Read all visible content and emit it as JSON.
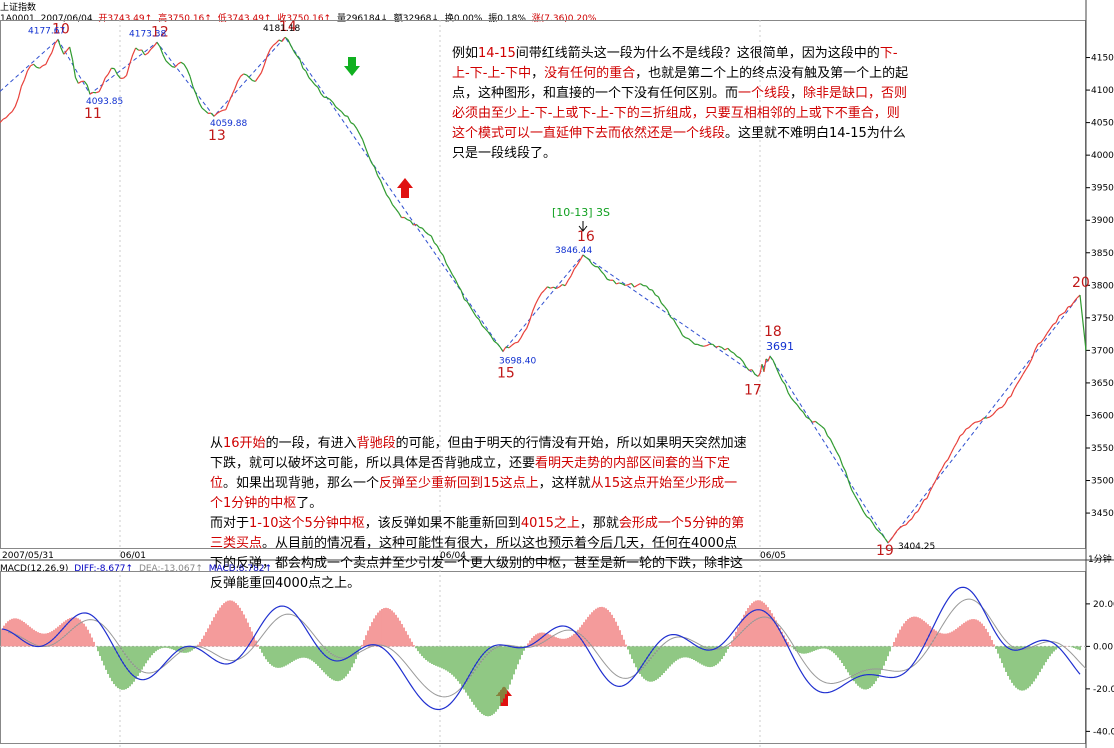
{
  "header": {
    "title": "上证指数",
    "code": "1A0001",
    "date": "2007/06/04",
    "open": "开3743.49↑",
    "high": "高3750.16↑",
    "low": "低3743.49↑",
    "close": "收3750.16↑",
    "volume": "量296184↓",
    "amount": "额32968↓",
    "change_pct": "换0.00%",
    "amplitude": "振0.18%",
    "rise": "涨(7.36)0.20%"
  },
  "macd_header": {
    "name": "MACD(12,26,9)",
    "diff": "DIFF:-8.677↑",
    "dea": "DEA:-13.067↑",
    "macd": "MACD:8.782↑"
  },
  "period_label": "1分钟",
  "colors": {
    "up": "#e8403a",
    "down": "#2e9a2e",
    "pen": "#3050d0",
    "macd_up": "#f07070",
    "macd_down": "#60b050"
  },
  "chart_data": {
    "type": "line",
    "price_axis": {
      "ylim": [
        3404,
        4200
      ],
      "ticks": [
        3450,
        3500,
        3550,
        3600,
        3650,
        3700,
        3750,
        3800,
        3850,
        3900,
        3950,
        4000,
        4050,
        4100,
        4150
      ]
    },
    "macd_axis": {
      "ylim": [
        -45,
        35
      ],
      "ticks": [
        20,
        0,
        -20,
        -40
      ],
      "tick_labels": [
        "20.00",
        "0.00",
        "-20.00",
        "-40.00"
      ]
    },
    "x_labels": [
      "2007/05/31",
      "06/01",
      "06/04",
      "06/05"
    ],
    "pivots": [
      {
        "label": "10",
        "price": 4177.67,
        "price_label": "4177.67"
      },
      {
        "label": "11",
        "price": 4093.85,
        "price_label": "4093.85"
      },
      {
        "label": "12",
        "price": 4173.38,
        "price_label": "4173.38"
      },
      {
        "label": "13",
        "price": 4059.88,
        "price_label": "4059.88"
      },
      {
        "label": "14",
        "price": 4181.18,
        "price_label": "4181.18"
      },
      {
        "label": "15",
        "price": 3698.4,
        "price_label": "3698.40"
      },
      {
        "label": "16",
        "price": 3846.44,
        "price_label": "3846.44"
      },
      {
        "label": "17",
        "price": 3660.0,
        "price_label": ""
      },
      {
        "label": "18",
        "price": 3691.0,
        "price_label": "3691"
      },
      {
        "label": "19",
        "price": 3404.25,
        "price_label": "3404.25"
      },
      {
        "label": "20",
        "price": 3785.0,
        "price_label": ""
      }
    ],
    "annotation_16": "[10-13] 3S"
  },
  "notes": {
    "top": [
      {
        "t": "例如",
        "r": false
      },
      {
        "t": "14-15",
        "r": true
      },
      {
        "t": "间带红线箭头这一段为什么不是线段？这很简单，因为这段中的",
        "r": false
      },
      {
        "t": "下-上-下-上-下中",
        "r": true
      },
      {
        "t": "，",
        "r": false
      },
      {
        "t": "没有任何的重合",
        "r": true
      },
      {
        "t": "，也就是第二个上的终点没有触及第一个上的起点，这种图形，和直接的一个下没有任何区别。而",
        "r": false
      },
      {
        "t": "一个线段",
        "r": true
      },
      {
        "t": "，",
        "r": false
      },
      {
        "t": "除非是缺口，否则必须由至少上-下-上或下-上-下的三折组成，只要互相相邻的上或下不重合，则这个模式可以一直延伸下去而依然还是一个线段",
        "r": true
      },
      {
        "t": "。这里就不难明白14-15为什么只是一段线段了。",
        "r": false
      }
    ],
    "bottom": [
      {
        "t": "从",
        "r": false
      },
      {
        "t": "16开始",
        "r": true
      },
      {
        "t": "的一段，有进入",
        "r": false
      },
      {
        "t": "背驰段",
        "r": true
      },
      {
        "t": "的可能，但由于明天的行情没有开始，所以如果明天突然加速下跌，就可以破坏这可能，所以具体是否背驰成立，还要",
        "r": false
      },
      {
        "t": "看明天走势的内部区间套的当下定位",
        "r": true
      },
      {
        "t": "。如果出现背驰，那么一个",
        "r": false
      },
      {
        "t": "反弹至少重新回到15这点上",
        "r": true
      },
      {
        "t": "，这样就",
        "r": false
      },
      {
        "t": "从15这点开始至少形成一个1分钟的中枢",
        "r": true
      },
      {
        "t": "了。",
        "r": false
      },
      {
        "t": "\n",
        "r": false
      },
      {
        "t": "而对于",
        "r": false
      },
      {
        "t": "1-10这个5分钟中枢",
        "r": true
      },
      {
        "t": "，该反弹如果不能重新回到",
        "r": false
      },
      {
        "t": "4015之上",
        "r": true
      },
      {
        "t": "，那就",
        "r": false
      },
      {
        "t": "会形成一个5分钟的第三类买点",
        "r": true
      },
      {
        "t": "。从目前的情况看，这种可能性有很大，所以这也预示着今后几天，任何在4000点下的反弹，都会构成一个卖点并至少引发一个更大级别的中枢，甚至是新一轮的下跌，除非这反弹能重回4000点之上。",
        "r": false
      }
    ]
  }
}
